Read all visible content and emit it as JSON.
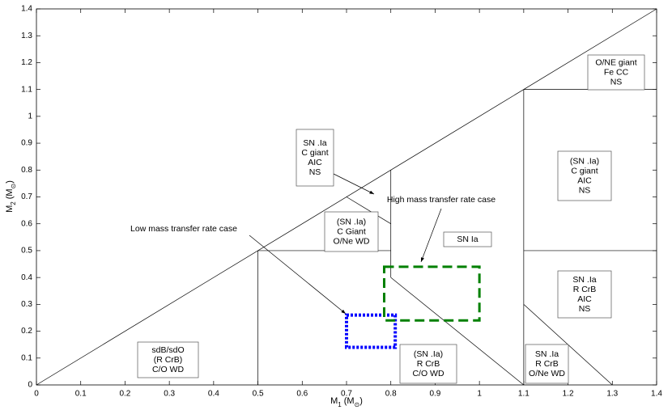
{
  "chart_data": {
    "type": "region-diagram",
    "xlabel": {
      "base": "M",
      "sub": "1",
      "unit": "(M",
      "unit_sub": "⊙",
      "close": ")"
    },
    "ylabel": {
      "base": "M",
      "sub": "2",
      "unit": "(M",
      "unit_sub": "⊙",
      "close": ")"
    },
    "xlim": [
      0,
      1.4
    ],
    "ylim": [
      0,
      1.4
    ],
    "xticks": [
      0,
      0.1,
      0.2,
      0.3,
      0.4,
      0.5,
      0.6,
      0.7,
      0.8,
      0.9,
      1,
      1.1,
      1.2,
      1.3,
      1.4
    ],
    "yticks": [
      0,
      0.1,
      0.2,
      0.3,
      0.4,
      0.5,
      0.6,
      0.7,
      0.8,
      0.9,
      1,
      1.1,
      1.2,
      1.3,
      1.4
    ],
    "boundaries": [
      {
        "x": [
          0,
          1.4
        ],
        "y": [
          0,
          1.4
        ]
      },
      {
        "x": [
          0.5,
          0.5
        ],
        "y": [
          0,
          0.5
        ]
      },
      {
        "x": [
          0.5,
          0.8
        ],
        "y": [
          0.5,
          0.5
        ]
      },
      {
        "x": [
          1.1,
          1.4
        ],
        "y": [
          0.5,
          0.5
        ]
      },
      {
        "x": [
          0.8,
          0.8
        ],
        "y": [
          0.4,
          0.8
        ]
      },
      {
        "x": [
          0.8,
          1.1
        ],
        "y": [
          0.4,
          0
        ]
      },
      {
        "x": [
          0.7,
          0.8
        ],
        "y": [
          0.7,
          0.6
        ]
      },
      {
        "x": [
          1.1,
          1.1
        ],
        "y": [
          0,
          1.1
        ]
      },
      {
        "x": [
          1.1,
          1.4
        ],
        "y": [
          1.1,
          1.1
        ]
      },
      {
        "x": [
          1.1,
          1.3
        ],
        "y": [
          0.3,
          0
        ]
      }
    ],
    "cases": [
      {
        "name": "Low mass transfer rate case",
        "color": "#0000ff",
        "x": [
          0.7,
          0.81
        ],
        "y": [
          0.14,
          0.26
        ]
      },
      {
        "name": "High mass transfer rate case",
        "color": "#008000",
        "x": [
          0.785,
          1.0
        ],
        "y": [
          0.24,
          0.44
        ]
      }
    ],
    "regions": [
      [
        "SN .Ia",
        "C giant",
        "AIC",
        "NS"
      ],
      [
        "(SN .Ia)",
        "C Giant",
        "O/Ne WD"
      ],
      [
        "SN Ia"
      ],
      [
        "O/NE giant",
        "Fe CC",
        "NS"
      ],
      [
        "(SN .Ia)",
        "C giant",
        "AIC",
        "NS"
      ],
      [
        "SN .Ia",
        "R CrB",
        "AIC",
        "NS"
      ],
      [
        "sdB/sdO",
        "(R CrB)",
        "C/O WD"
      ],
      [
        "(SN .Ia)",
        "R CrB",
        "C/O WD"
      ],
      [
        "SN .Ia",
        "R CrB",
        "O/Ne WD"
      ]
    ]
  }
}
